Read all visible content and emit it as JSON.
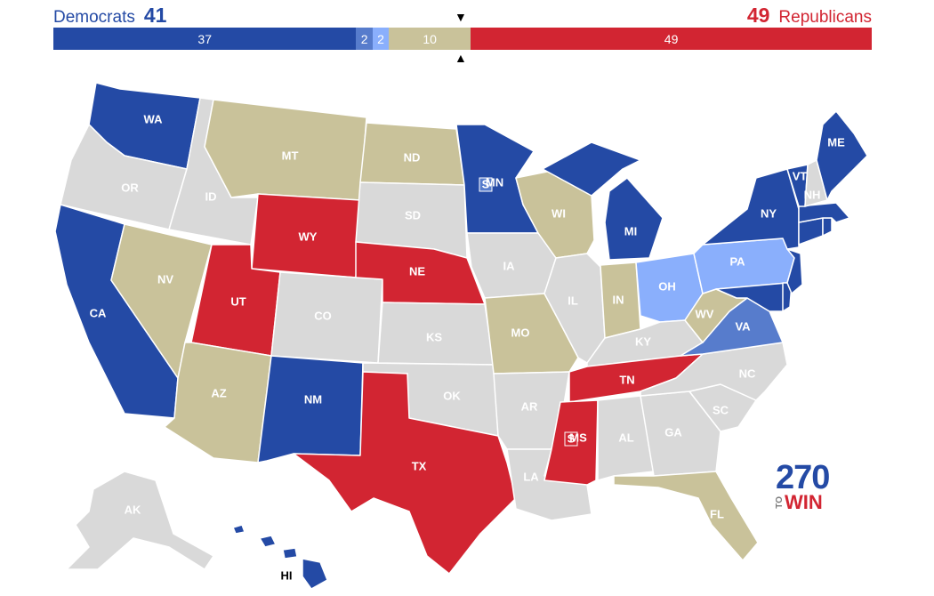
{
  "header": {
    "dem_label": "Democrats",
    "dem_total": "41",
    "rep_total": "49",
    "rep_label": "Republicans"
  },
  "bar": {
    "segments": [
      {
        "label": "37",
        "value": 37,
        "color": "#244aa5"
      },
      {
        "label": "2",
        "value": 2,
        "color": "#577ccc"
      },
      {
        "label": "2",
        "value": 2,
        "color": "#8aaffc"
      },
      {
        "label": "10",
        "value": 10,
        "color": "#c9c29a"
      },
      {
        "label": "49",
        "value": 49,
        "color": "#d22532"
      }
    ],
    "top_marker": "▼",
    "bottom_marker": "▲"
  },
  "colors": {
    "safe_dem": "#244aa5",
    "likely_dem": "#577ccc",
    "lean_dem": "#8aaffc",
    "tossup": "#c9c29a",
    "safe_rep": "#d22532",
    "no_race": "#d9d9d9"
  },
  "states": [
    {
      "code": "WA",
      "label": "WA",
      "rating": "safe_dem"
    },
    {
      "code": "OR",
      "label": "OR",
      "rating": "no_race"
    },
    {
      "code": "CA",
      "label": "CA",
      "rating": "safe_dem"
    },
    {
      "code": "ID",
      "label": "ID",
      "rating": "no_race"
    },
    {
      "code": "NV",
      "label": "NV",
      "rating": "tossup"
    },
    {
      "code": "AZ",
      "label": "AZ",
      "rating": "tossup"
    },
    {
      "code": "UT",
      "label": "UT",
      "rating": "safe_rep"
    },
    {
      "code": "MT",
      "label": "MT",
      "rating": "tossup"
    },
    {
      "code": "WY",
      "label": "WY",
      "rating": "safe_rep"
    },
    {
      "code": "CO",
      "label": "CO",
      "rating": "no_race"
    },
    {
      "code": "NM",
      "label": "NM",
      "rating": "safe_dem"
    },
    {
      "code": "ND",
      "label": "ND",
      "rating": "tossup"
    },
    {
      "code": "SD",
      "label": "SD",
      "rating": "no_race"
    },
    {
      "code": "NE",
      "label": "NE",
      "rating": "safe_rep"
    },
    {
      "code": "KS",
      "label": "KS",
      "rating": "no_race"
    },
    {
      "code": "OK",
      "label": "OK",
      "rating": "no_race"
    },
    {
      "code": "TX",
      "label": "TX",
      "rating": "safe_rep"
    },
    {
      "code": "MN",
      "label": "MN",
      "rating": "safe_dem"
    },
    {
      "code": "IA",
      "label": "IA",
      "rating": "no_race"
    },
    {
      "code": "MO",
      "label": "MO",
      "rating": "tossup"
    },
    {
      "code": "AR",
      "label": "AR",
      "rating": "no_race"
    },
    {
      "code": "LA",
      "label": "LA",
      "rating": "no_race"
    },
    {
      "code": "WI",
      "label": "WI",
      "rating": "tossup"
    },
    {
      "code": "IL",
      "label": "IL",
      "rating": "no_race"
    },
    {
      "code": "MI",
      "label": "MI",
      "rating": "safe_dem"
    },
    {
      "code": "IN",
      "label": "IN",
      "rating": "tossup"
    },
    {
      "code": "OH",
      "label": "OH",
      "rating": "lean_dem"
    },
    {
      "code": "KY",
      "label": "KY",
      "rating": "no_race"
    },
    {
      "code": "TN",
      "label": "TN",
      "rating": "safe_rep"
    },
    {
      "code": "MS",
      "label": "MS",
      "rating": "safe_rep"
    },
    {
      "code": "AL",
      "label": "AL",
      "rating": "no_race"
    },
    {
      "code": "GA",
      "label": "GA",
      "rating": "no_race"
    },
    {
      "code": "FL",
      "label": "FL",
      "rating": "tossup"
    },
    {
      "code": "SC",
      "label": "SC",
      "rating": "no_race"
    },
    {
      "code": "NC",
      "label": "NC",
      "rating": "no_race"
    },
    {
      "code": "VA",
      "label": "VA",
      "rating": "likely_dem"
    },
    {
      "code": "WV",
      "label": "WV",
      "rating": "tossup"
    },
    {
      "code": "PA",
      "label": "PA",
      "rating": "lean_dem"
    },
    {
      "code": "NY",
      "label": "NY",
      "rating": "safe_dem"
    },
    {
      "code": "VT",
      "label": "VT",
      "rating": "safe_dem"
    },
    {
      "code": "NH",
      "label": "NH",
      "rating": "no_race"
    },
    {
      "code": "ME",
      "label": "ME",
      "rating": "safe_dem"
    },
    {
      "code": "MA",
      "label": "",
      "rating": "safe_dem"
    },
    {
      "code": "CT",
      "label": "",
      "rating": "safe_dem"
    },
    {
      "code": "RI",
      "label": "",
      "rating": "safe_dem"
    },
    {
      "code": "NJ",
      "label": "",
      "rating": "safe_dem"
    },
    {
      "code": "DE",
      "label": "",
      "rating": "safe_dem"
    },
    {
      "code": "MD",
      "label": "",
      "rating": "safe_dem"
    },
    {
      "code": "AK",
      "label": "AK",
      "rating": "no_race"
    },
    {
      "code": "HI",
      "label": "HI",
      "rating": "safe_dem"
    }
  ],
  "special_elections": [
    {
      "state": "MN",
      "label": "S",
      "rating": "likely_dem"
    },
    {
      "state": "MS",
      "label": "S",
      "rating": "safe_rep"
    }
  ],
  "logo": {
    "number": "270",
    "to": "TO",
    "win": "WIN"
  }
}
